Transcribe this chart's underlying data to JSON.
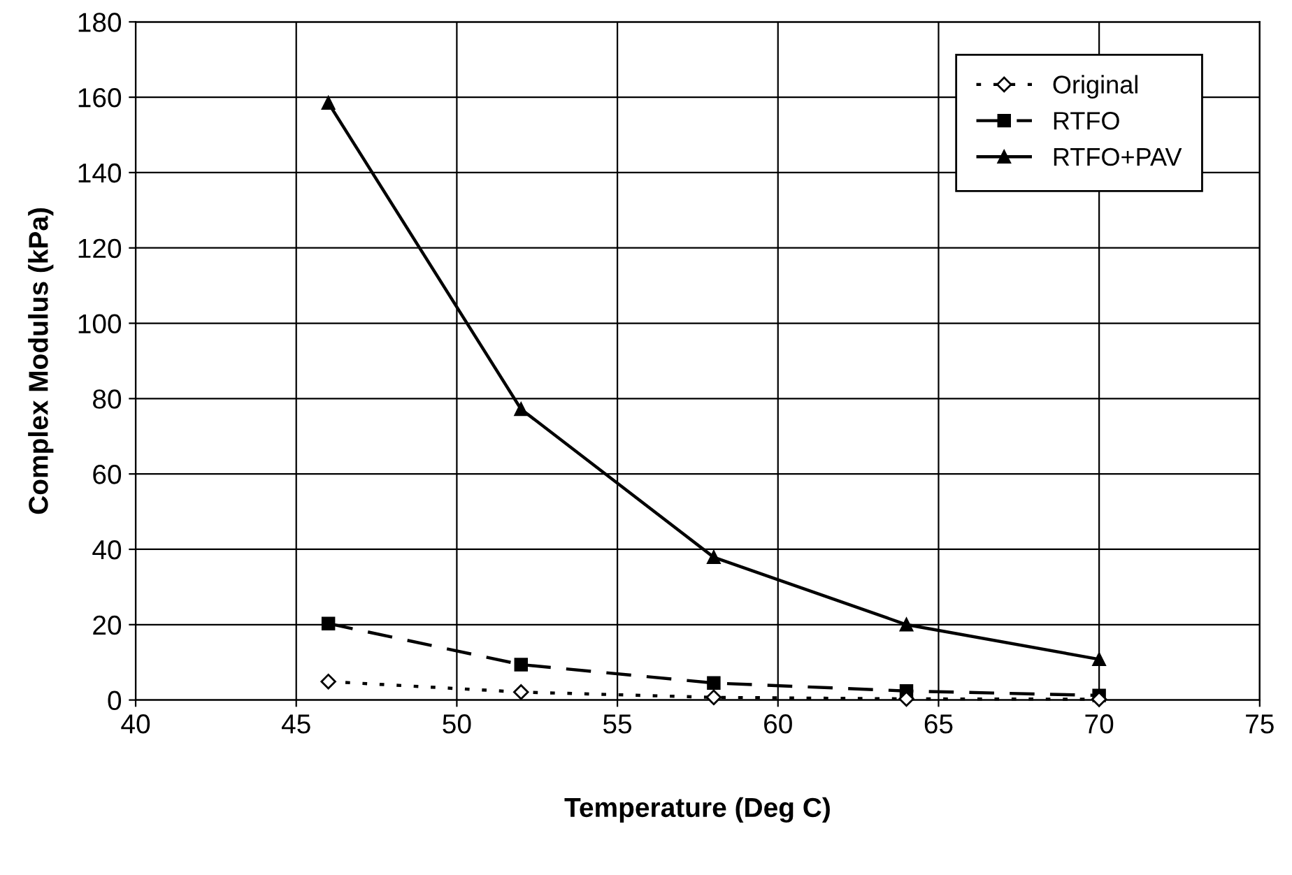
{
  "chart_data": {
    "type": "line",
    "xlabel": "Temperature (Deg C)",
    "ylabel": "Complex Modulus (kPa)",
    "x": [
      46,
      52,
      58,
      64,
      70
    ],
    "series": [
      {
        "name": "Original",
        "color": "#000000",
        "values": [
          4.9,
          2.1,
          0.7,
          0.3,
          0.2
        ],
        "marker": "diamond",
        "line_style": "dotted"
      },
      {
        "name": "RTFO",
        "color": "#000000",
        "values": [
          20.3,
          9.4,
          4.5,
          2.4,
          1.2
        ],
        "marker": "square",
        "line_style": "dashed"
      },
      {
        "name": "RTFO+PAV",
        "color": "#000000",
        "values": [
          158.5,
          77.2,
          37.9,
          20.0,
          10.8
        ],
        "marker": "triangle",
        "line_style": "solid"
      }
    ],
    "xlim": [
      40,
      75
    ],
    "xticks": [
      40,
      45,
      50,
      55,
      60,
      65,
      70,
      75
    ],
    "ylim": [
      0,
      180
    ],
    "yticks": [
      0,
      20,
      40,
      60,
      80,
      100,
      120,
      140,
      160,
      180
    ],
    "grid": true,
    "legend": "top right"
  }
}
